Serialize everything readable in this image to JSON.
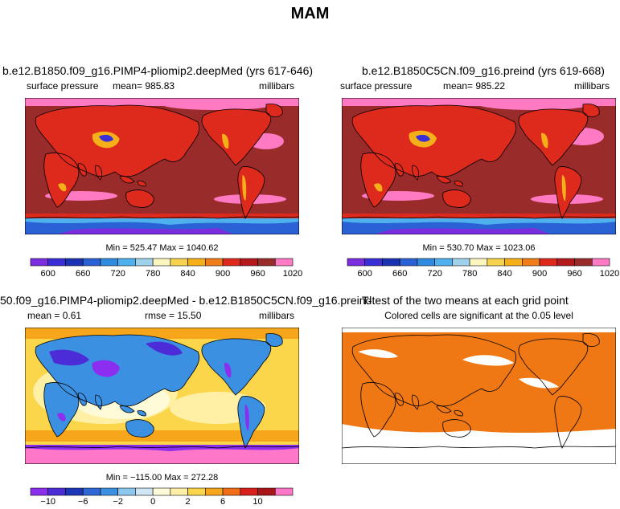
{
  "figure_title": "MAM",
  "colors": {
    "surface_palette": [
      "#7a2ee0",
      "#3a2fd6",
      "#1b33b3",
      "#2a62d6",
      "#2f8be0",
      "#4fb0ee",
      "#9ed2ea",
      "#fbf5c0",
      "#f7d24e",
      "#f5b019",
      "#f07d18",
      "#dd2a1c",
      "#b4191c",
      "#9a2b2b",
      "#ff7ac2"
    ],
    "diff_palette": [
      "#8b2ef0",
      "#4c2cd6",
      "#1d36b8",
      "#2f66d8",
      "#3c90e2",
      "#8cc8ee",
      "#cfe6f5",
      "#fffbd8",
      "#fff0a6",
      "#fcd64a",
      "#f7a61c",
      "#f06d16",
      "#d91e1c",
      "#a9161a",
      "#ff77c8"
    ],
    "ttest": "#f07814"
  },
  "chart_data": [
    {
      "type": "heatmap",
      "panel": "top-left",
      "title": "b.e12.B1850.f09_g16.PIMP4-pliomip2.deepMed (yrs 617-646)",
      "left_label": "surface pressure",
      "center_label": "mean= 985.83",
      "right_label": "millibars",
      "minmax_text": "Min = 525.47  Max = 1040.62",
      "stats": {
        "mean": 985.83,
        "min": 525.47,
        "max": 1040.62
      },
      "colorbar_ticks": [
        "600",
        "660",
        "720",
        "780",
        "840",
        "900",
        "960",
        "1020"
      ],
      "colorbar_levels": 15
    },
    {
      "type": "heatmap",
      "panel": "top-right",
      "title": "b.e12.B1850C5CN.f09_g16.preind (yrs 619-668)",
      "left_label": "surface pressure",
      "center_label": "mean= 985.22",
      "right_label": "millibars",
      "minmax_text": "Min = 530.70  Max = 1023.06",
      "stats": {
        "mean": 985.22,
        "min": 530.7,
        "max": 1023.06
      },
      "colorbar_ticks": [
        "600",
        "660",
        "720",
        "780",
        "840",
        "900",
        "960",
        "1020"
      ],
      "colorbar_levels": 15
    },
    {
      "type": "heatmap",
      "panel": "bottom-left",
      "title": "50.f09_g16.PIMP4-pliomip2.deepMed - b.e12.B1850C5CN.f09_g16.preind",
      "left_label": "mean =   0.61",
      "center_label": "rmse =  15.50",
      "right_label": "millibars",
      "minmax_text": "Min = −115.00  Max = 272.28",
      "stats": {
        "mean": 0.61,
        "rmse": 15.5,
        "min": -115.0,
        "max": 272.28
      },
      "colorbar_ticks": [
        "−10",
        "−6",
        "−2",
        "0",
        "2",
        "6",
        "10"
      ],
      "colorbar_levels": 15
    },
    {
      "type": "heatmap",
      "panel": "bottom-right",
      "title": "T-test of the two means at each grid point",
      "subtitle": "Colored cells are significant at the 0.05 level"
    }
  ]
}
